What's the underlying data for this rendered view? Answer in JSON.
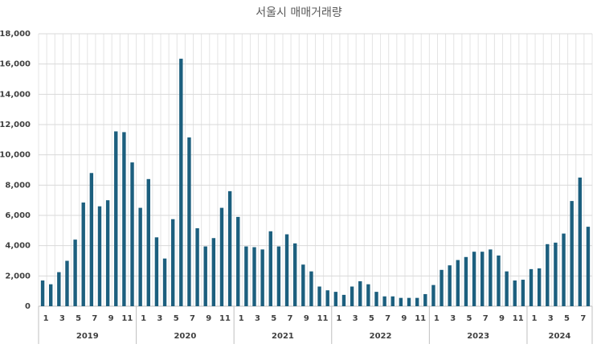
{
  "chart_data": {
    "type": "bar",
    "title": "서울시 매매거래량",
    "categories": [
      "1",
      null,
      "3",
      null,
      "5",
      null,
      "7",
      null,
      "9",
      null,
      "11",
      null,
      "1",
      null,
      "3",
      null,
      "5",
      null,
      "7",
      null,
      "9",
      null,
      "11",
      null,
      "1",
      null,
      "3",
      null,
      "5",
      null,
      "7",
      null,
      "9",
      null,
      "11",
      null,
      "1",
      null,
      "3",
      null,
      "5",
      null,
      "7",
      null,
      "9",
      null,
      "11",
      null,
      "1",
      null,
      "3",
      null,
      "5",
      null,
      "7",
      null,
      "9",
      null,
      "11",
      null,
      "1",
      null,
      "3",
      null,
      "5",
      null,
      "7",
      null
    ],
    "years": [
      "2019",
      "2020",
      "2021",
      "2022",
      "2023",
      "2024"
    ],
    "values": [
      1700,
      1450,
      2250,
      3000,
      4400,
      6850,
      8800,
      6600,
      7000,
      11550,
      11500,
      9500,
      6500,
      8400,
      4550,
      3150,
      5750,
      16350,
      11150,
      5150,
      3950,
      4500,
      6500,
      7600,
      5900,
      3950,
      3900,
      3750,
      4950,
      3950,
      4750,
      4150,
      2750,
      2300,
      1300,
      1050,
      950,
      750,
      1300,
      1650,
      1450,
      950,
      650,
      650,
      550,
      550,
      550,
      800,
      1400,
      2400,
      2700,
      3050,
      3250,
      3600,
      3600,
      3750,
      3350,
      2300,
      1700,
      1750,
      2450,
      2500,
      4100,
      4200,
      4800,
      6950,
      8500,
      5250
    ],
    "color": "#1c5f7e",
    "ylim": [
      0,
      18000
    ],
    "yticks": [
      0,
      {
        "value": 2000,
        "label": "2,000"
      },
      {
        "value": 4000,
        "label": "4,000"
      },
      {
        "value": 6000,
        "label": "6,000"
      },
      {
        "value": 8000,
        "label": "8,000"
      },
      {
        "value": 10000,
        "label": "10,000"
      },
      {
        "value": 12000,
        "label": "12,000"
      },
      {
        "value": 14000,
        "label": "14,000"
      },
      {
        "value": 16000,
        "label": "16,000"
      },
      {
        "value": 18000,
        "label": "18,000"
      }
    ],
    "grid": true
  }
}
